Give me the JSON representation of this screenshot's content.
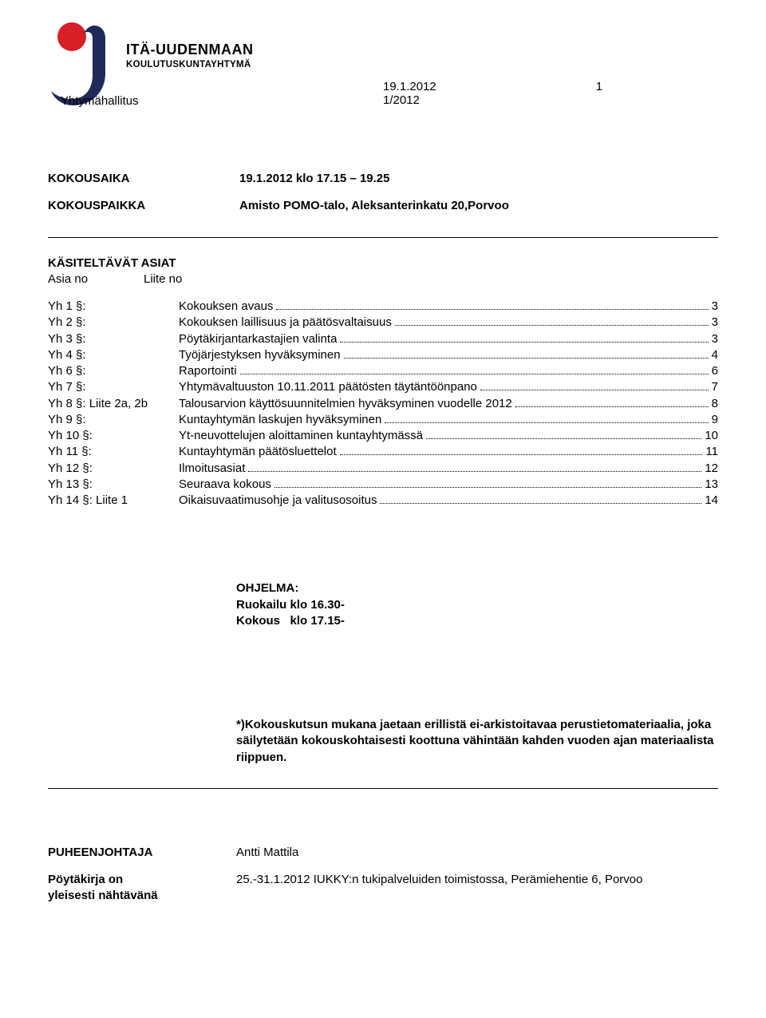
{
  "logo": {
    "org": "ITÄ-UUDENMAAN",
    "sub": "KOULUTUSKUNTAYHTYMÄ",
    "red": "#d61f26",
    "navy": "#1e2a5a"
  },
  "header": {
    "date": "19.1.2012",
    "page_no": "1",
    "board": "Yhtymähallitus",
    "session": "1/2012"
  },
  "meta": {
    "kokousaika_label": "KOKOUSAIKA",
    "kokousaika_value": "19.1.2012 klo 17.15 – 19.25",
    "kokouspaikka_label": "KOKOUSPAIKKA",
    "kokouspaikka_value": "Amisto POMO-talo, Aleksanterinkatu 20,Porvoo"
  },
  "asiat_heading": "KÄSITELTÄVÄT ASIAT",
  "asiat_sub1": "Asia no",
  "asiat_sub2": "Liite no",
  "toc": [
    {
      "key": "Yh 1 §:",
      "title": "Kokouksen avaus",
      "pg": "3"
    },
    {
      "key": "Yh 2 §:",
      "title": "Kokouksen laillisuus ja päätösvaltaisuus",
      "pg": "3"
    },
    {
      "key": "Yh 3 §:",
      "title": "Pöytäkirjantarkastajien valinta",
      "pg": "3"
    },
    {
      "key": "Yh 4 §:",
      "title": "Työjärjestyksen hyväksyminen",
      "pg": "4"
    },
    {
      "key": "Yh 6 §:",
      "title": "Raportointi",
      "pg": "6"
    },
    {
      "key": "Yh 7 §:",
      "title": "Yhtymävaltuuston 10.11.2011 päätösten täytäntöönpano",
      "pg": "7"
    },
    {
      "key": "Yh 8 §: Liite 2a, 2b",
      "title": "Talousarvion käyttösuunnitelmien hyväksyminen vuodelle 2012",
      "pg": "8"
    },
    {
      "key": "Yh 9 §:",
      "title": "Kuntayhtymän laskujen hyväksyminen",
      "pg": "9"
    },
    {
      "key": "Yh 10 §:",
      "title": "Yt-neuvottelujen aloittaminen kuntayhtymässä",
      "pg": "10"
    },
    {
      "key": "Yh 11 §:",
      "title": "Kuntayhtymän päätösluettelot",
      "pg": "11"
    },
    {
      "key": "Yh 12 §:",
      "title": "Ilmoitusasiat",
      "pg": "12"
    },
    {
      "key": "Yh 13 §:",
      "title": "Seuraava kokous",
      "pg": "13"
    },
    {
      "key": "Yh 14 §: Liite 1",
      "title": "Oikaisuvaatimusohje ja valitusosoitus",
      "pg": "14"
    }
  ],
  "ohjelma": {
    "heading": "OHJELMA:",
    "line1": "Ruokailu klo 16.30-",
    "line2": "Kokous   klo 17.15-"
  },
  "footnote": "*)Kokouskutsun mukana jaetaan erillistä ei-arkistoitavaa perustietomateriaalia, joka säilytetään kokouskohtaisesti koottuna vähintään kahden vuoden ajan materiaalista riippuen.",
  "footer": {
    "pj_label": "PUHEENJOHTAJA",
    "pj_value": "Antti Mattila",
    "pk_label1": "Pöytäkirja on",
    "pk_label2": "yleisesti nähtävänä",
    "pk_value": "25.-31.1.2012 IUKKY:n tukipalveluiden toimistossa, Perämiehentie 6, Porvoo"
  }
}
